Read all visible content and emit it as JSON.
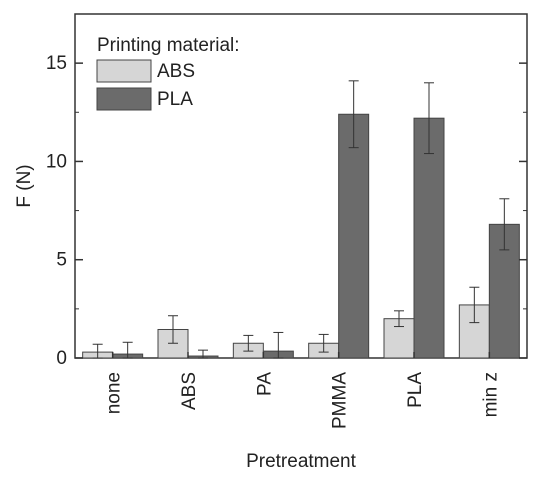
{
  "chart_data": {
    "type": "bar",
    "xlabel": "Pretreatment",
    "ylabel": "F (N)",
    "ylim": [
      0,
      17.5
    ],
    "yticks": [
      0,
      5,
      10,
      15
    ],
    "categories": [
      "none",
      "ABS",
      "PA",
      "PMMA",
      "PLA",
      "min z"
    ],
    "legend": {
      "title": "Printing material:",
      "placement": "top-left"
    },
    "series": [
      {
        "name": "ABS",
        "color": "#d6d6d6",
        "values": [
          0.3,
          1.45,
          0.75,
          0.75,
          2.0,
          2.7
        ],
        "errors": [
          0.4,
          0.7,
          0.4,
          0.45,
          0.4,
          0.9
        ]
      },
      {
        "name": "PLA",
        "color": "#6b6b6b",
        "values": [
          0.2,
          0.1,
          0.35,
          12.4,
          12.2,
          6.8
        ],
        "errors": [
          0.6,
          0.3,
          0.95,
          1.7,
          1.8,
          1.3
        ]
      }
    ],
    "grid": false
  }
}
